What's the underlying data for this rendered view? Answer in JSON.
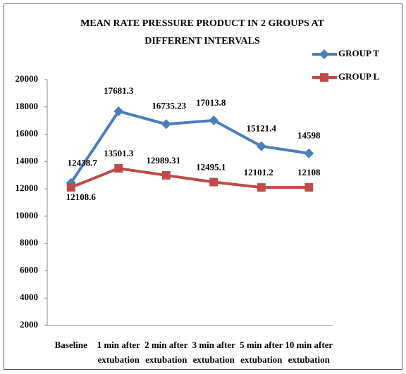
{
  "chart_data": {
    "type": "line",
    "title": [
      "MEAN RATE PRESSURE PRODUCT IN 2 GROUPS AT",
      "DIFFERENT INTERVALS"
    ],
    "categories": [
      [
        "Baseline"
      ],
      [
        "1 min after",
        "extubation"
      ],
      [
        "2 min after",
        "extubation"
      ],
      [
        "3 min after",
        "extubation"
      ],
      [
        "5 min after",
        "extubation"
      ],
      [
        "10 min after",
        "extubation"
      ]
    ],
    "series": [
      {
        "name": "GROUP T",
        "color": "#4a7ebb",
        "marker": "diamond",
        "values": [
          12438.7,
          17681.3,
          16735.23,
          17013.8,
          15121.4,
          14598
        ]
      },
      {
        "name": "GROUP L",
        "color": "#be4b48",
        "marker": "square",
        "values": [
          12108.6,
          13501.3,
          12989.31,
          12495.1,
          12101.2,
          12108
        ]
      }
    ],
    "ylim": [
      2000,
      20000
    ],
    "yticks": [
      2000,
      4000,
      6000,
      8000,
      10000,
      12000,
      14000,
      16000,
      18000,
      20000
    ],
    "grid": false,
    "legend": "top-right"
  }
}
